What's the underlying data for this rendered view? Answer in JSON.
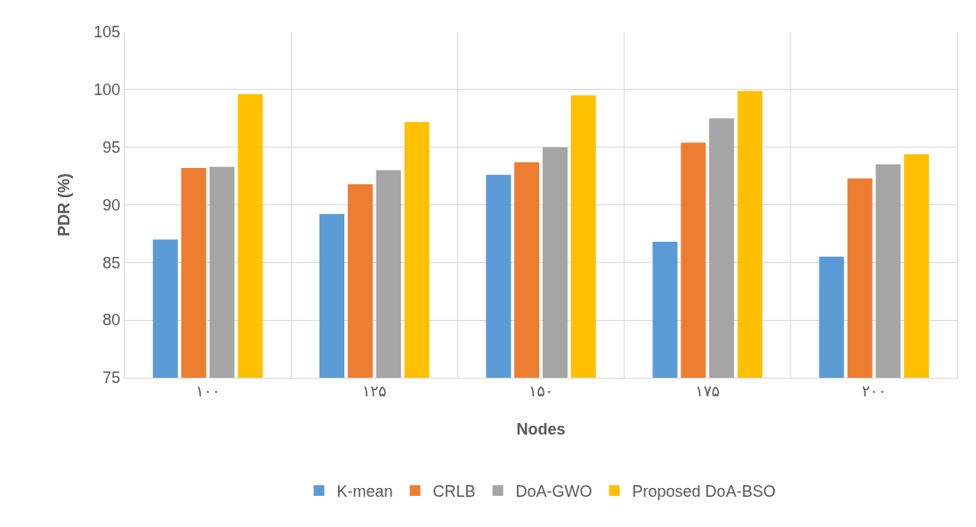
{
  "chart_data": {
    "type": "bar",
    "xlabel": "Nodes",
    "ylabel": "PDR (%)",
    "categories": [
      "۱۰۰",
      "۱۲۵",
      "۱۵۰",
      "۱۷۵",
      "۲۰۰"
    ],
    "series": [
      {
        "name": "K-mean",
        "color": "#5b9bd5",
        "values": [
          87.0,
          89.2,
          92.6,
          86.8,
          85.5
        ]
      },
      {
        "name": "CRLB",
        "color": "#ed7d31",
        "values": [
          93.2,
          91.8,
          93.7,
          95.4,
          92.3
        ]
      },
      {
        "name": "DoA-GWO",
        "color": "#a5a5a5",
        "values": [
          93.3,
          93.0,
          95.0,
          97.5,
          93.5
        ]
      },
      {
        "name": "Proposed DoA-BSO",
        "color": "#ffc000",
        "values": [
          99.6,
          97.2,
          99.5,
          99.9,
          94.4
        ]
      }
    ],
    "ylim": [
      75,
      105
    ],
    "yticks": [
      75,
      80,
      85,
      90,
      95,
      100,
      105
    ],
    "grid": true,
    "legend": "bottom"
  }
}
